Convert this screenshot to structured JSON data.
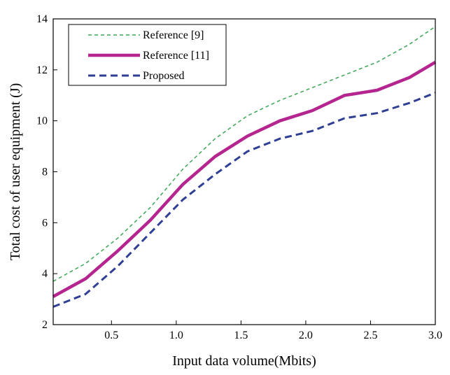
{
  "chart_data": {
    "type": "line",
    "title": "",
    "xlabel": "Input data volume(Mbits)",
    "ylabel": "Total cost of user equipment (J)",
    "xlim": [
      0.05,
      3.0
    ],
    "ylim": [
      2,
      14
    ],
    "x_ticks": [
      0.5,
      1.0,
      1.5,
      2.0,
      2.5,
      3.0
    ],
    "x_tick_labels": [
      "0.5",
      "1.0",
      "1.5",
      "2.0",
      "2.5",
      "3.0"
    ],
    "y_ticks": [
      2,
      4,
      6,
      8,
      10,
      12,
      14
    ],
    "y_tick_labels": [
      "2",
      "4",
      "6",
      "8",
      "10",
      "12",
      "14"
    ],
    "grid": false,
    "legend_position": "top-left",
    "x": [
      0.05,
      0.3,
      0.55,
      0.8,
      1.05,
      1.3,
      1.55,
      1.8,
      2.05,
      2.3,
      2.55,
      2.8,
      3.0
    ],
    "series": [
      {
        "name": "Reference [9]",
        "color": "#3aa655",
        "style": "dashed-thin",
        "values": [
          3.7,
          4.4,
          5.4,
          6.6,
          8.1,
          9.3,
          10.2,
          10.8,
          11.3,
          11.8,
          12.3,
          13.0,
          13.7
        ]
      },
      {
        "name": "Reference [11]",
        "color": "#b5258f",
        "style": "solid-thick",
        "values": [
          3.1,
          3.8,
          4.9,
          6.1,
          7.5,
          8.6,
          9.4,
          10.0,
          10.4,
          11.0,
          11.2,
          11.7,
          12.3
        ]
      },
      {
        "name": "Proposed",
        "color": "#2e3f94",
        "style": "dashed-thick",
        "values": [
          2.7,
          3.2,
          4.3,
          5.6,
          6.9,
          7.9,
          8.8,
          9.3,
          9.6,
          10.1,
          10.3,
          10.7,
          11.1
        ]
      }
    ]
  }
}
